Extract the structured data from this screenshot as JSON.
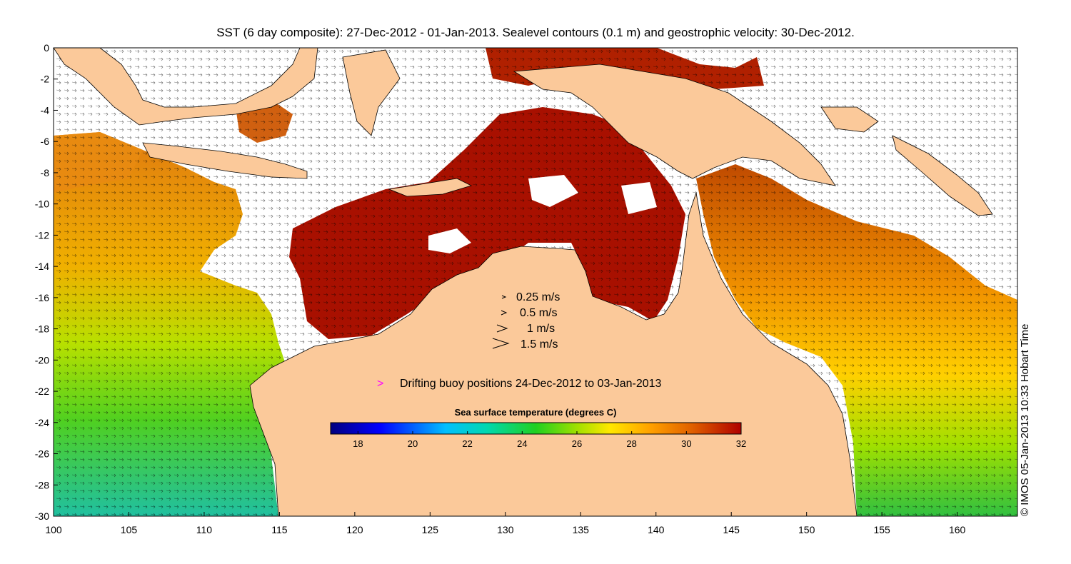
{
  "title": "SST (6 day composite): 27-Dec-2012 - 01-Jan-2013. Sealevel contours (0.1 m) and geostrophic velocity: 30-Dec-2012.",
  "axes": {
    "x_ticks": [
      "100",
      "105",
      "110",
      "115",
      "120",
      "125",
      "130",
      "135",
      "140",
      "145",
      "150",
      "155",
      "160"
    ],
    "y_ticks": [
      "0",
      "-2",
      "-4",
      "-6",
      "-8",
      "-10",
      "-12",
      "-14",
      "-16",
      "-18",
      "-20",
      "-22",
      "-24",
      "-26",
      "-28",
      "-30"
    ],
    "x_range": [
      100,
      164
    ],
    "y_range": [
      -30,
      0
    ]
  },
  "velocity_legend": [
    {
      "label": "0.25 m/s",
      "speed": 0.25
    },
    {
      "label": "0.5 m/s",
      "speed": 0.5
    },
    {
      "label": "1 m/s",
      "speed": 1
    },
    {
      "label": "1.5 m/s",
      "speed": 1.5
    }
  ],
  "buoy_legend": {
    "symbol": ">",
    "label": "Drifting buoy positions 24-Dec-2012 to 03-Jan-2013",
    "color": "#ff00ff"
  },
  "colorbar": {
    "label": "Sea surface temperature (degrees C)",
    "range": [
      17,
      32
    ],
    "ticks": [
      "18",
      "20",
      "22",
      "24",
      "26",
      "28",
      "30",
      "32"
    ]
  },
  "credit": "© IMOS 05-Jan-2013 10:33 Hobart Time",
  "colors": {
    "land": "#fbc99a",
    "cloud": "#ffffff",
    "buoy": "#ff00ff"
  }
}
